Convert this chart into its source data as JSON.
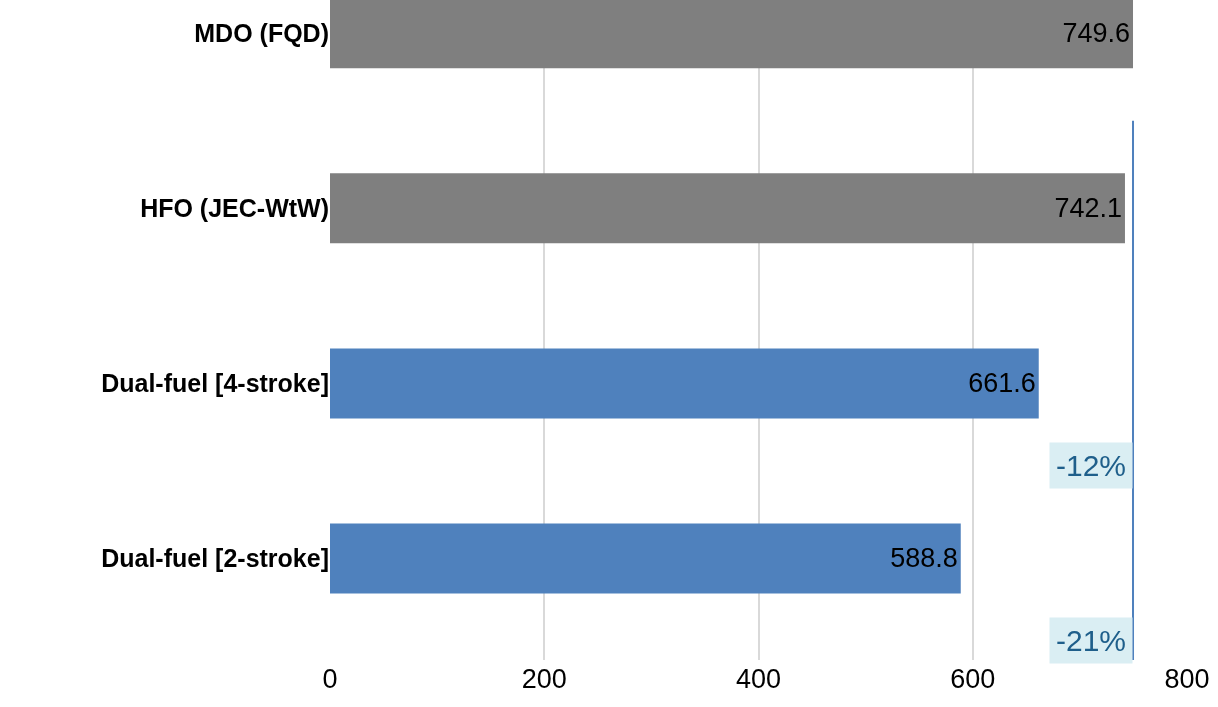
{
  "chart_data": {
    "type": "bar",
    "orientation": "horizontal",
    "categories": [
      "MDO (FQD)",
      "HFO (JEC-WtW)",
      "Dual-fuel [4-stroke]",
      "Dual-fuel [2-stroke]"
    ],
    "values": [
      749.6,
      742.1,
      661.6,
      588.8
    ],
    "colors": [
      "#7f7f7f",
      "#7f7f7f",
      "#4f81bd",
      "#4f81bd"
    ],
    "data_labels": true,
    "xlim": [
      0,
      800
    ],
    "xticks": [
      0,
      200,
      400,
      600,
      800
    ],
    "grid": "x",
    "ref_lines": [
      {
        "axis": "x",
        "value": 749.6,
        "color": "#4f81bd"
      }
    ],
    "annotations": [
      "-12%",
      "-21%"
    ]
  }
}
